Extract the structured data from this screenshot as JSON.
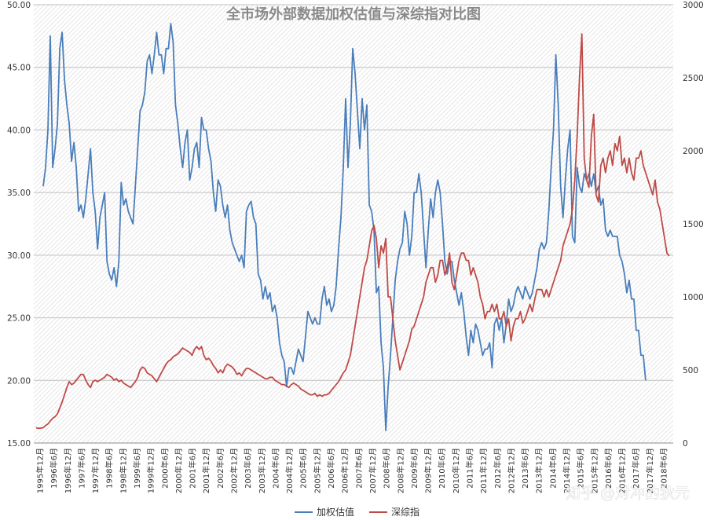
{
  "chart_data": {
    "type": "line",
    "title": "全市场外部数据加权估值与深综指对比图",
    "x_tick_labels": [
      "1995年12月",
      "1996年6月",
      "1996年12月",
      "1997年6月",
      "1997年12月",
      "1998年6月",
      "1998年12月",
      "1999年6月",
      "1999年12月",
      "2000年6月",
      "2000年12月",
      "2001年6月",
      "2001年12月",
      "2002年6月",
      "2002年12月",
      "2003年6月",
      "2003年12月",
      "2004年6月",
      "2004年12月",
      "2005年6月",
      "2005年12月",
      "2006年6月",
      "2006年12月",
      "2007年6月",
      "2007年12月",
      "2008年6月",
      "2008年12月",
      "2009年6月",
      "2009年12月",
      "2010年6月",
      "2010年12月",
      "2011年6月",
      "2011年12月",
      "2012年6月",
      "2012年12月",
      "2013年6月",
      "2013年12月",
      "2014年6月",
      "2014年12月",
      "2015年6月",
      "2015年12月",
      "2016年6月",
      "2016年12月",
      "2017年6月",
      "2017年12月",
      "2018年6月"
    ],
    "y_left": {
      "min": 15,
      "max": 50,
      "ticks": [
        "15.00",
        "20.00",
        "25.00",
        "30.00",
        "35.00",
        "40.00",
        "45.00",
        "50.00"
      ]
    },
    "y_right": {
      "min": 0,
      "max": 3000,
      "ticks": [
        "0",
        "500",
        "1000",
        "1500",
        "2000",
        "2500",
        "3000"
      ]
    },
    "grid": true,
    "legend_position": "bottom",
    "series": [
      {
        "name": "加权估值",
        "axis": "left",
        "color": "#4a7ebb",
        "start_index": 3,
        "values": [
          35.5,
          37.0,
          40.0,
          47.5,
          37.0,
          38.5,
          40.5,
          46.5,
          47.8,
          44.0,
          42.0,
          40.5,
          37.5,
          39.0,
          37.0,
          33.5,
          34.0,
          33.0,
          34.5,
          36.5,
          38.5,
          35.0,
          33.5,
          30.5,
          33.0,
          34.0,
          35.0,
          29.5,
          28.5,
          28.0,
          29.0,
          27.5,
          29.5,
          35.8,
          34.0,
          34.5,
          33.5,
          33.0,
          32.5,
          35.5,
          38.5,
          41.5,
          42.0,
          43.0,
          45.5,
          46.0,
          44.5,
          46.0,
          47.8,
          46.0,
          46.0,
          44.5,
          46.5,
          46.5,
          48.5,
          47.0,
          42.0,
          40.5,
          38.5,
          37.0,
          39.0,
          40.0,
          36.0,
          37.0,
          38.5,
          39.0,
          37.0,
          41.0,
          40.0,
          40.0,
          38.5,
          37.5,
          35.0,
          33.5,
          36.0,
          35.5,
          34.0,
          33.0,
          34.0,
          32.0,
          31.0,
          30.5,
          30.0,
          29.5,
          30.0,
          29.0,
          33.5,
          34.0,
          34.3,
          33.0,
          32.5,
          28.5,
          28.0,
          26.5,
          27.5,
          26.5,
          27.0,
          25.5,
          26.0,
          25.0,
          23.0,
          22.0,
          21.5,
          19.5,
          21.0,
          21.0,
          20.5,
          21.5,
          22.5,
          22.0,
          21.5,
          23.5,
          25.5,
          25.0,
          24.5,
          25.0,
          24.5,
          24.5,
          26.5,
          27.5,
          26.0,
          26.5,
          25.5,
          26.0,
          27.5,
          30.5,
          33.0,
          37.0,
          42.5,
          37.0,
          40.5,
          46.5,
          44.5,
          41.5,
          38.5,
          42.5,
          40.0,
          42.0,
          34.0,
          33.5,
          32.0,
          27.0,
          27.5,
          23.0,
          21.0,
          16.0,
          19.5,
          22.0,
          25.0,
          28.0,
          29.5,
          30.5,
          31.0,
          33.5,
          32.5,
          30.0,
          31.5,
          35.0,
          35.0,
          36.5,
          35.0,
          32.0,
          29.0,
          32.0,
          34.5,
          33.0,
          35.0,
          36.0,
          35.0,
          32.5,
          29.5,
          28.5,
          29.5,
          29.5,
          28.0,
          27.0,
          26.0,
          27.0,
          25.5,
          23.5,
          22.0,
          24.0,
          23.0,
          24.5,
          24.0,
          23.0,
          22.0,
          22.5,
          22.5,
          23.0,
          21.0,
          24.5,
          25.0,
          24.0,
          25.0,
          23.0,
          24.5,
          26.5,
          25.5,
          26.0,
          27.0,
          27.5,
          27.0,
          26.5,
          27.5,
          27.0,
          26.5,
          27.0,
          28.0,
          29.0,
          30.5,
          31.0,
          30.5,
          31.0,
          33.5,
          37.0,
          40.0,
          46.0,
          42.0,
          35.5,
          33.0,
          36.0,
          38.5,
          40.0,
          31.5,
          31.0,
          37.0,
          35.5,
          35.0,
          36.5,
          36.0,
          36.5,
          35.5,
          36.5,
          35.0,
          35.5,
          34.0,
          34.5,
          32.0,
          31.5,
          32.0,
          31.5,
          31.5,
          31.5,
          30.0,
          29.5,
          28.5,
          27.0,
          28.0,
          26.5,
          26.5,
          24.0,
          24.0,
          22.0,
          22.0,
          20.0
        ]
      },
      {
        "name": "深综指",
        "axis": "right",
        "color": "#be4b48",
        "start_index": 0,
        "values": [
          105,
          100,
          102,
          105,
          120,
          130,
          150,
          170,
          180,
          200,
          240,
          280,
          330,
          380,
          420,
          400,
          410,
          430,
          450,
          470,
          470,
          430,
          400,
          380,
          420,
          430,
          420,
          430,
          440,
          450,
          470,
          460,
          450,
          430,
          440,
          420,
          430,
          410,
          400,
          390,
          380,
          400,
          420,
          450,
          500,
          520,
          510,
          480,
          470,
          460,
          440,
          420,
          450,
          480,
          510,
          540,
          560,
          570,
          590,
          600,
          610,
          630,
          650,
          640,
          630,
          620,
          600,
          640,
          660,
          640,
          660,
          600,
          570,
          580,
          560,
          530,
          510,
          480,
          500,
          480,
          520,
          540,
          530,
          520,
          500,
          470,
          480,
          460,
          490,
          510,
          510,
          500,
          490,
          480,
          470,
          460,
          450,
          440,
          440,
          450,
          450,
          430,
          420,
          410,
          400,
          400,
          390,
          380,
          400,
          410,
          400,
          390,
          370,
          360,
          350,
          340,
          330,
          330,
          340,
          320,
          330,
          320,
          330,
          330,
          340,
          360,
          380,
          400,
          420,
          450,
          480,
          500,
          550,
          600,
          700,
          800,
          900,
          1000,
          1100,
          1200,
          1250,
          1350,
          1450,
          1490,
          1400,
          1200,
          1350,
          1300,
          1400,
          1000,
          1000,
          850,
          700,
          600,
          500,
          550,
          600,
          650,
          700,
          780,
          800,
          850,
          900,
          950,
          1000,
          1100,
          1150,
          1200,
          1200,
          1100,
          1150,
          1250,
          1250,
          1150,
          1200,
          1300,
          1100,
          1050,
          1150,
          1250,
          1300,
          1300,
          1250,
          1250,
          1150,
          1200,
          1150,
          1100,
          1000,
          950,
          850,
          900,
          900,
          950,
          900,
          950,
          850,
          850,
          900,
          800,
          850,
          700,
          800,
          850,
          850,
          900,
          820,
          850,
          900,
          950,
          900,
          980,
          1050,
          1050,
          1050,
          1000,
          1050,
          1000,
          1050,
          1100,
          1150,
          1200,
          1250,
          1350,
          1400,
          1450,
          1500,
          1600,
          1800,
          2100,
          2500,
          2800,
          1950,
          1800,
          1750,
          2100,
          2250,
          1700,
          1650,
          1900,
          1950,
          1850,
          1950,
          2000,
          1900,
          2050,
          2000,
          2100,
          1900,
          1950,
          1850,
          1950,
          1850,
          1800,
          1950,
          1950,
          2000,
          1900,
          1850,
          1800,
          1750,
          1700,
          1800,
          1650,
          1600,
          1500,
          1400,
          1300,
          1280
        ]
      }
    ],
    "watermark": "知乎 @对冲的狄元"
  }
}
